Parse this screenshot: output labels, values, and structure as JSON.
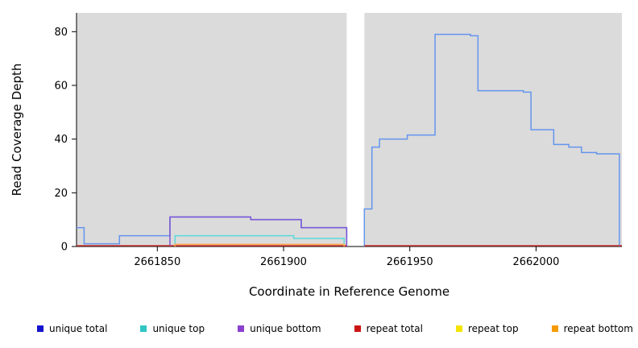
{
  "figure": {
    "background": "#FFFFFF"
  },
  "chart_data": {
    "type": "line",
    "subtype": "step-coverage",
    "title": "",
    "xlabel": "Coordinate in Reference Genome",
    "ylabel": "Read Coverage Depth",
    "xlim": [
      2661818,
      2662034
    ],
    "ylim": [
      0,
      87
    ],
    "x_ticks": [
      2661850,
      2661900,
      2661950,
      2662000
    ],
    "y_ticks": [
      0,
      20,
      40,
      60,
      80
    ],
    "grid": false,
    "legend_position": "bottom",
    "background": {
      "color": "#DBDBDB",
      "segments": [
        [
          2661818,
          2661925
        ],
        [
          2661932,
          2662034
        ]
      ]
    },
    "gap": {
      "from": 2661925,
      "to": 2661932
    },
    "series": [
      {
        "name": "unique total",
        "color": "#6495ED",
        "segments": [
          {
            "from_zero": false,
            "to_zero": true,
            "end": 2661925,
            "points": [
              [
                2661818,
                7
              ],
              [
                2661821,
                1
              ],
              [
                2661835,
                4
              ],
              [
                2661855,
                11
              ],
              [
                2661887,
                10
              ],
              [
                2661907,
                7
              ]
            ]
          },
          {
            "from_zero": true,
            "to_zero": true,
            "end": 2662033,
            "points": [
              [
                2661932,
                14
              ],
              [
                2661935,
                37
              ],
              [
                2661938,
                40
              ],
              [
                2661949,
                41.5
              ],
              [
                2661960,
                79
              ],
              [
                2661974,
                78.5
              ],
              [
                2661977,
                58
              ],
              [
                2661995,
                57.5
              ],
              [
                2661998,
                43.5
              ],
              [
                2662007,
                38
              ],
              [
                2662013,
                37
              ],
              [
                2662018,
                35
              ],
              [
                2662024,
                34.5
              ]
            ]
          }
        ]
      },
      {
        "name": "unique top",
        "color": "#5BD9D9",
        "segments": [
          {
            "from_zero": true,
            "to_zero": true,
            "end": 2661924,
            "points": [
              [
                2661857,
                4
              ],
              [
                2661904,
                3
              ]
            ]
          }
        ]
      },
      {
        "name": "unique bottom",
        "color": "#7D55D4",
        "segments": [
          {
            "from_zero": true,
            "to_zero": true,
            "end": 2661925,
            "points": [
              [
                2661855,
                11
              ],
              [
                2661887,
                10
              ],
              [
                2661907,
                7
              ]
            ]
          }
        ]
      },
      {
        "name": "repeat total",
        "color": "#CC3333",
        "segments": [
          {
            "from_zero": false,
            "to_zero": false,
            "end": 2661925,
            "points": [
              [
                2661818,
                0.3
              ]
            ]
          },
          {
            "from_zero": false,
            "to_zero": false,
            "end": 2662034,
            "points": [
              [
                2661932,
                0.3
              ]
            ]
          }
        ]
      },
      {
        "name": "repeat top",
        "color": "#F5E400",
        "segments": []
      },
      {
        "name": "repeat bottom",
        "color": "#FFA94D",
        "segments": [
          {
            "from_zero": true,
            "to_zero": true,
            "end": 2661924,
            "points": [
              [
                2661857,
                0.8
              ]
            ]
          }
        ]
      }
    ],
    "legend": [
      {
        "label": "unique total",
        "color": "#1414CC"
      },
      {
        "label": "unique top",
        "color": "#2FC5C5"
      },
      {
        "label": "unique bottom",
        "color": "#8A3FD1"
      },
      {
        "label": "repeat total",
        "color": "#CC1414"
      },
      {
        "label": "repeat top",
        "color": "#F5E400"
      },
      {
        "label": "repeat bottom",
        "color": "#F59B00"
      }
    ]
  }
}
